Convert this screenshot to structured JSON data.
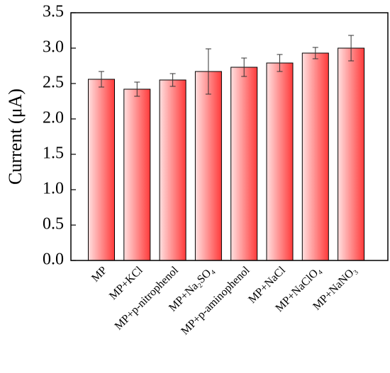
{
  "chart_data": {
    "type": "bar",
    "y_label": "Current (μA)",
    "categories": [
      "MP",
      "MP+KCl",
      "MP+p-nitrophenol",
      "MP+Na₂SO₄",
      "MP+p-aminophenol",
      "MP+NaCl",
      "MP+NaClO₄",
      "MP+NaNO₃"
    ],
    "values": [
      2.56,
      2.42,
      2.55,
      2.67,
      2.73,
      2.79,
      2.93,
      3.0
    ],
    "errors": [
      0.11,
      0.1,
      0.09,
      0.32,
      0.13,
      0.12,
      0.08,
      0.18
    ],
    "color": "#ff3a3a",
    "ylim": [
      0,
      3.5
    ],
    "yticks": [
      {
        "value": 0,
        "label": "0.0"
      },
      {
        "value": 0.5,
        "label": "0.5"
      },
      {
        "value": 1,
        "label": "1.0"
      },
      {
        "value": 1.5,
        "label": "1.5"
      },
      {
        "value": 2,
        "label": "2.0"
      },
      {
        "value": 2.5,
        "label": "2.5"
      },
      {
        "value": 3,
        "label": "3.0"
      },
      {
        "value": 3.5,
        "label": "3.5"
      }
    ]
  }
}
